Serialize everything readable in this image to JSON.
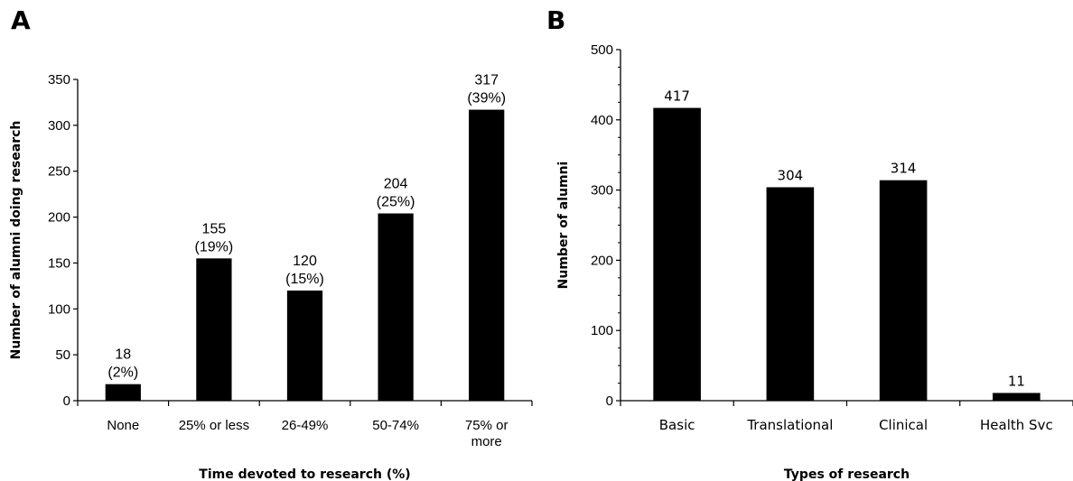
{
  "panels": {
    "a_label": "A",
    "b_label": "B"
  },
  "chart_data": [
    {
      "type": "bar",
      "panel": "A",
      "categories": [
        [
          "None"
        ],
        [
          "25% or less"
        ],
        [
          "26-49%"
        ],
        [
          "50-74%"
        ],
        [
          "75% or",
          "more"
        ]
      ],
      "values": [
        18,
        155,
        120,
        204,
        317
      ],
      "data_labels": [
        [
          "18",
          "(2%)"
        ],
        [
          "155",
          "(19%)"
        ],
        [
          "120",
          "(15%)"
        ],
        [
          "204",
          "(25%)"
        ],
        [
          "317",
          "(39%)"
        ]
      ],
      "xlabel": "Time devoted to research (%)",
      "ylabel": "Number of alumni doing research",
      "ylim": [
        0,
        350
      ],
      "yticks": [
        0,
        50,
        100,
        150,
        200,
        250,
        300,
        350
      ],
      "bar_color": "#000000",
      "grid": false
    },
    {
      "type": "bar",
      "panel": "B",
      "categories": [
        [
          "Basic"
        ],
        [
          "Translational"
        ],
        [
          "Clinical"
        ],
        [
          "Health Svc"
        ]
      ],
      "values": [
        417,
        304,
        314,
        11
      ],
      "data_labels": [
        [
          "417"
        ],
        [
          "304"
        ],
        [
          "314"
        ],
        [
          "11"
        ]
      ],
      "xlabel": "Types of research",
      "ylabel": "Number of alumni",
      "ylim": [
        0,
        500
      ],
      "yticks": [
        0,
        100,
        200,
        300,
        400,
        500
      ],
      "bar_color": "#000000",
      "grid": false
    }
  ]
}
